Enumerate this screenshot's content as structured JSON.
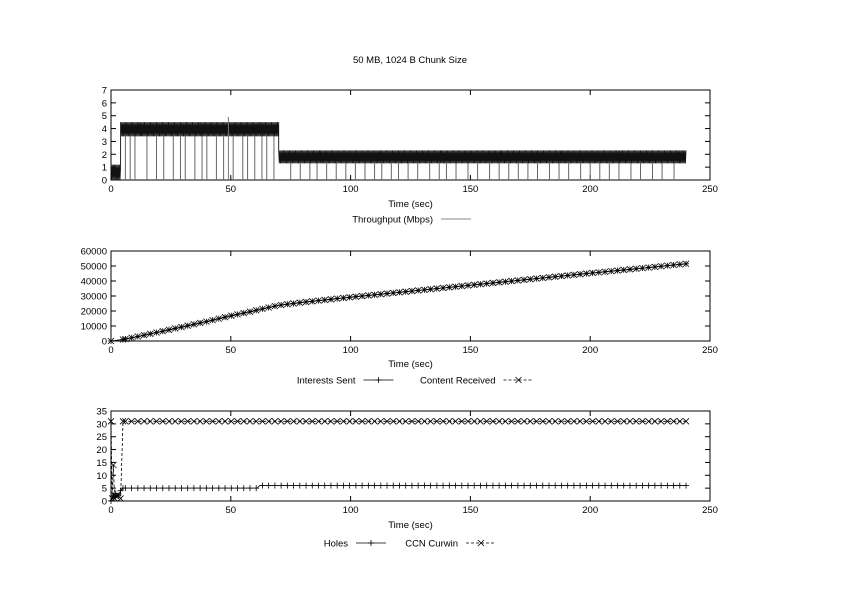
{
  "title": "50 MB, 1024 B Chunk Size",
  "chart_data": [
    {
      "type": "line",
      "xlabel": "Time (sec)",
      "ylabel": "",
      "xlim": [
        0,
        250
      ],
      "ylim": [
        0,
        7
      ],
      "xticks": [
        "0",
        "50",
        "100",
        "150",
        "200",
        "250"
      ],
      "yticks": [
        "0",
        "1",
        "2",
        "3",
        "4",
        "5",
        "6",
        "7"
      ],
      "grid": false,
      "legend_position": "bottom-center",
      "series": [
        {
          "name": "Throughput (Mbps)",
          "style": "solid-gray",
          "segments": [
            {
              "x_start": 0,
              "x_end": 4,
              "y_low": 0,
              "y_high": 1.2
            },
            {
              "x_start": 4,
              "x_end": 70,
              "y_low": 3.4,
              "y_high": 4.5
            },
            {
              "x_start": 70,
              "x_end": 240,
              "y_low": 1.3,
              "y_high": 2.3
            }
          ],
          "dropouts_x": [
            6,
            8,
            10,
            15,
            19,
            22,
            26,
            29,
            31,
            35,
            38,
            40,
            44,
            47,
            51,
            55,
            57,
            60,
            63,
            65,
            68,
            75,
            79,
            83,
            86,
            90,
            94,
            98,
            102,
            106,
            110,
            113,
            117,
            120,
            124,
            128,
            133,
            137,
            140,
            144,
            149,
            153,
            158,
            162,
            166,
            170,
            174,
            178,
            183,
            187,
            191,
            196,
            200,
            204,
            208,
            212,
            217,
            221,
            226,
            230,
            235
          ],
          "spikes": [
            {
              "x": 49,
              "y": 4.9
            }
          ]
        }
      ]
    },
    {
      "type": "line",
      "xlabel": "Time (sec)",
      "ylabel": "",
      "xlim": [
        0,
        250
      ],
      "ylim": [
        0,
        60000
      ],
      "xticks": [
        "0",
        "50",
        "100",
        "150",
        "200",
        "250"
      ],
      "yticks": [
        "0",
        "10000",
        "20000",
        "30000",
        "40000",
        "50000",
        "60000"
      ],
      "grid": false,
      "legend_position": "bottom-center",
      "series": [
        {
          "name": "Interests Sent",
          "marker": "plus",
          "line": "solid",
          "x": [
            0,
            5,
            10,
            20,
            30,
            40,
            50,
            60,
            62,
            70,
            80,
            100,
            120,
            140,
            160,
            180,
            200,
            220,
            240
          ],
          "y": [
            0,
            1000,
            2600,
            6000,
            9500,
            13000,
            16800,
            20200,
            21000,
            23800,
            25800,
            29200,
            32400,
            35600,
            38800,
            42000,
            45200,
            48300,
            51500
          ]
        },
        {
          "name": "Content Received",
          "marker": "cross",
          "line": "dashed",
          "x": [
            0,
            5,
            10,
            20,
            30,
            40,
            50,
            60,
            62,
            70,
            80,
            100,
            120,
            140,
            160,
            180,
            200,
            220,
            240
          ],
          "y": [
            0,
            1000,
            2600,
            6000,
            9500,
            13000,
            16800,
            20200,
            21000,
            23800,
            25800,
            29200,
            32400,
            35600,
            38800,
            42000,
            45200,
            48300,
            51500
          ]
        }
      ]
    },
    {
      "type": "line",
      "xlabel": "Time (sec)",
      "ylabel": "",
      "xlim": [
        0,
        250
      ],
      "ylim": [
        0,
        35
      ],
      "xticks": [
        "0",
        "50",
        "100",
        "150",
        "200",
        "250"
      ],
      "yticks": [
        "0",
        "5",
        "10",
        "15",
        "20",
        "25",
        "30",
        "35"
      ],
      "grid": false,
      "legend_position": "bottom-center",
      "series": [
        {
          "name": "Holes",
          "marker": "plus",
          "line": "solid",
          "x": [
            0,
            1,
            2,
            3,
            4,
            5,
            60,
            61,
            62,
            240
          ],
          "y": [
            0,
            2,
            3,
            2,
            4,
            5,
            5,
            5,
            6,
            6
          ]
        },
        {
          "name": "CCN Curwin",
          "marker": "cross",
          "line": "dashed",
          "x": [
            0,
            0.5,
            1,
            1.5,
            2,
            3,
            4,
            5,
            240
          ],
          "y": [
            31,
            1,
            14,
            1,
            2,
            2,
            1,
            31,
            31
          ]
        }
      ]
    }
  ]
}
